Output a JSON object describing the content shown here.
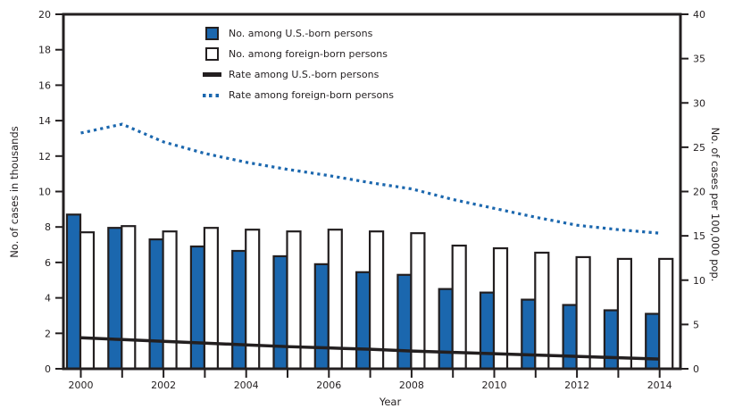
{
  "figure": {
    "legend": [
      {
        "label": "No. among U.S.-born persons",
        "swatch": "bar-filled-icon"
      },
      {
        "label": "No. among foreign-born persons",
        "swatch": "bar-outline-icon"
      },
      {
        "label": "Rate among U.S.-born persons",
        "swatch": "line-solid-icon"
      },
      {
        "label": "Rate among foreign-born persons",
        "swatch": "line-dotted-icon"
      }
    ],
    "colors": {
      "bar_blue": "#1b67ae",
      "dotted_blue": "#1b67ae",
      "line_black": "#231f20",
      "axis": "#231f20",
      "background": "#ffffff"
    }
  },
  "chart_data": {
    "type": "bar+line",
    "title": "",
    "categories": [
      2000,
      2001,
      2002,
      2003,
      2004,
      2005,
      2006,
      2007,
      2008,
      2009,
      2010,
      2011,
      2012,
      2013,
      2014
    ],
    "series": [
      {
        "name": "No. among U.S.-born persons",
        "type": "bar",
        "axis": "left",
        "color": "#1b67ae",
        "values": [
          8.7,
          7.95,
          7.3,
          6.9,
          6.65,
          6.35,
          5.9,
          5.45,
          5.3,
          4.5,
          4.3,
          3.9,
          3.6,
          3.3,
          3.1
        ]
      },
      {
        "name": "No. among foreign-born persons",
        "type": "bar",
        "axis": "left",
        "color": "#ffffff",
        "values": [
          7.7,
          8.05,
          7.75,
          7.95,
          7.85,
          7.75,
          7.85,
          7.75,
          7.65,
          6.95,
          6.8,
          6.55,
          6.3,
          6.2,
          6.2
        ]
      },
      {
        "name": "Rate among U.S.-born persons",
        "type": "line",
        "axis": "right",
        "color": "#231f20",
        "values": [
          3.5,
          3.3,
          3.1,
          2.9,
          2.7,
          2.5,
          2.35,
          2.2,
          2.0,
          1.85,
          1.7,
          1.55,
          1.4,
          1.25,
          1.1
        ]
      },
      {
        "name": "Rate among foreign-born persons",
        "type": "line-dotted",
        "axis": "right",
        "color": "#1b67ae",
        "values": [
          26.6,
          27.6,
          25.6,
          24.3,
          23.3,
          22.5,
          21.8,
          21.0,
          20.3,
          19.1,
          18.1,
          17.1,
          16.2,
          15.7,
          15.3
        ]
      }
    ],
    "left_axis": {
      "label": "No. of cases in thousands",
      "min": 0,
      "max": 20,
      "tick_step": 2
    },
    "right_axis": {
      "label": "No. of cases per 100,000 pop.",
      "min": 0,
      "max": 40,
      "tick_step": 5
    },
    "x_axis": {
      "label": "Year",
      "tick_every_year": 1,
      "label_every_years": 2
    },
    "legend_position": "inside-top-center",
    "grid": false
  }
}
